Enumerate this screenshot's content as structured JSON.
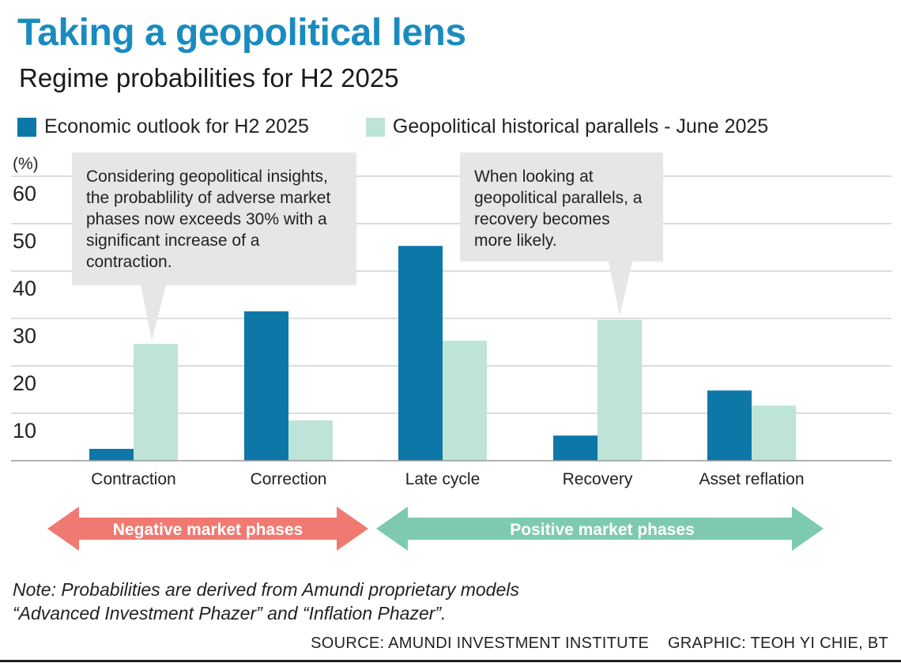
{
  "title": "Taking a geopolitical lens",
  "subtitle": "Regime probabilities for H2 2025",
  "chart_data": {
    "type": "bar",
    "categories": [
      "Contraction",
      "Correction",
      "Late cycle",
      "Recovery",
      "Asset reflation"
    ],
    "series": [
      {
        "name": "Economic outlook for H2 2025",
        "color": "#0d77a8",
        "values": [
          2.5,
          31.5,
          45.3,
          5.3,
          14.8
        ]
      },
      {
        "name": "Geopolitical historical parallels - June 2025",
        "color": "#bde4d6",
        "values": [
          24.6,
          8.5,
          25.3,
          29.7,
          11.6
        ]
      }
    ],
    "ylabel": "(%)",
    "yticks": [
      10,
      20,
      30,
      40,
      50,
      60
    ],
    "ylim": [
      0,
      60
    ],
    "grid": true
  },
  "annotations": [
    {
      "text": "Considering geopolitical insights, the probablility of adverse market phases now exceeds 30% with a significant increase of a contraction."
    },
    {
      "text": "When looking at geopolitical parallels, a recovery becomes more likely."
    }
  ],
  "phases": {
    "negative": {
      "label": "Negative market phases",
      "color": "#f07a72"
    },
    "positive": {
      "label": "Positive market phases",
      "color": "#7ecab0"
    }
  },
  "note": {
    "line1": "Note: Probabilities are derived from Amundi proprietary models",
    "line2": "“Advanced Investment Phazer” and “Inflation Phazer”."
  },
  "footer": {
    "source": "SOURCE: AMUNDI INVESTMENT INSTITUTE",
    "graphic": "GRAPHIC: TEOH YI CHIE, BT"
  }
}
